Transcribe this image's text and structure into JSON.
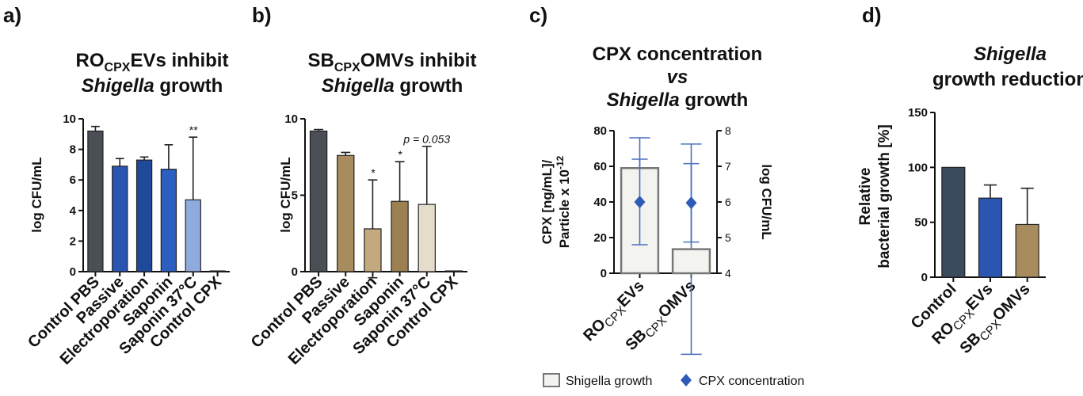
{
  "chart_data": [
    {
      "type": "bar",
      "panel_label": "a)",
      "title": [
        [
          "RO",
          "CPX",
          "EVs inhibit"
        ],
        [
          "Shigella",
          "growth"
        ]
      ],
      "ylabel": "log CFU/mL",
      "categories": [
        "Control PBS",
        "Passive",
        "Electroporation",
        "Saponin",
        "Saponin 37°C",
        "Control CPX"
      ],
      "values": [
        9.2,
        6.9,
        7.3,
        6.7,
        4.7,
        0.05
      ],
      "errors": [
        0.3,
        0.5,
        0.2,
        1.6,
        4.1,
        0
      ],
      "colors": [
        "#4a4f56",
        "#2a55b0",
        "#1f4a9c",
        "#2c5fc0",
        "#8faadc",
        "#ffffff"
      ],
      "annotations": [
        null,
        null,
        null,
        null,
        "**",
        null
      ],
      "ylim": [
        0,
        10
      ],
      "yticks": [
        0,
        2,
        4,
        6,
        8,
        10
      ]
    },
    {
      "type": "bar",
      "panel_label": "b)",
      "title": [
        [
          "SB",
          "CPX",
          "OMVs inhibit"
        ],
        [
          "Shigella",
          "growth"
        ]
      ],
      "ylabel": "log CFU/mL",
      "categories": [
        "Control PBS",
        "Passive",
        "Electroporation",
        "Saponin",
        "Saponin 37°C",
        "Control CPX"
      ],
      "values": [
        9.2,
        7.6,
        2.8,
        4.6,
        4.4,
        0.05
      ],
      "errors": [
        0.1,
        0.2,
        3.2,
        2.6,
        3.8,
        0
      ],
      "colors": [
        "#4a4f56",
        "#a88c5e",
        "#c2a97e",
        "#9c8052",
        "#e6dccb",
        "#ffffff"
      ],
      "annotations": [
        null,
        null,
        "*",
        "*",
        "p = 0.053",
        null
      ],
      "ylim": [
        0,
        10
      ],
      "yticks": [
        0,
        5,
        10
      ]
    },
    {
      "type": "bar",
      "panel_label": "c)",
      "title": [
        [
          "CPX concentration"
        ],
        [
          "vs"
        ],
        [
          "Shigella",
          "growth"
        ]
      ],
      "ylabel": [
        [
          "CPX [ng/mL]/"
        ],
        [
          "Particle x 10",
          "-12"
        ]
      ],
      "y2label": "log CFU/mL",
      "categories": [
        [
          "RO",
          "CPX",
          "EVs"
        ],
        [
          "SB",
          "CPX",
          "OMVs"
        ]
      ],
      "series": [
        {
          "name": "Shigella growth",
          "axis": "y2",
          "values": [
            6.95,
            4.675
          ],
          "errors": [
            0.85,
            2.95
          ],
          "color": "#f3f3ef"
        },
        {
          "name": "CPX concentration",
          "type": "scatter",
          "values": [
            40,
            39.5
          ],
          "errors": [
            24,
            22
          ],
          "color": "#2f5bb7"
        }
      ],
      "ylim": [
        0,
        80
      ],
      "yticks": [
        0,
        20,
        40,
        60,
        80
      ],
      "y2lim": [
        4,
        8
      ],
      "y2ticks": [
        4,
        5,
        6,
        7,
        8
      ]
    },
    {
      "type": "bar",
      "panel_label": "d)",
      "title": [
        [
          "Shigella"
        ],
        [
          "growth reduction"
        ]
      ],
      "ylabel": [
        "Relative",
        "bacterial growth [%]"
      ],
      "categories": [
        [
          "Control"
        ],
        [
          "RO",
          "CPX",
          "EVs"
        ],
        [
          "SB",
          "CPX",
          "OMVs"
        ]
      ],
      "values": [
        100,
        72,
        48
      ],
      "errors": [
        0,
        12,
        33
      ],
      "colors": [
        "#3b4a5c",
        "#2a55b0",
        "#a88c5e"
      ],
      "ylim": [
        0,
        150
      ],
      "yticks": [
        0,
        50,
        100,
        150
      ]
    }
  ]
}
